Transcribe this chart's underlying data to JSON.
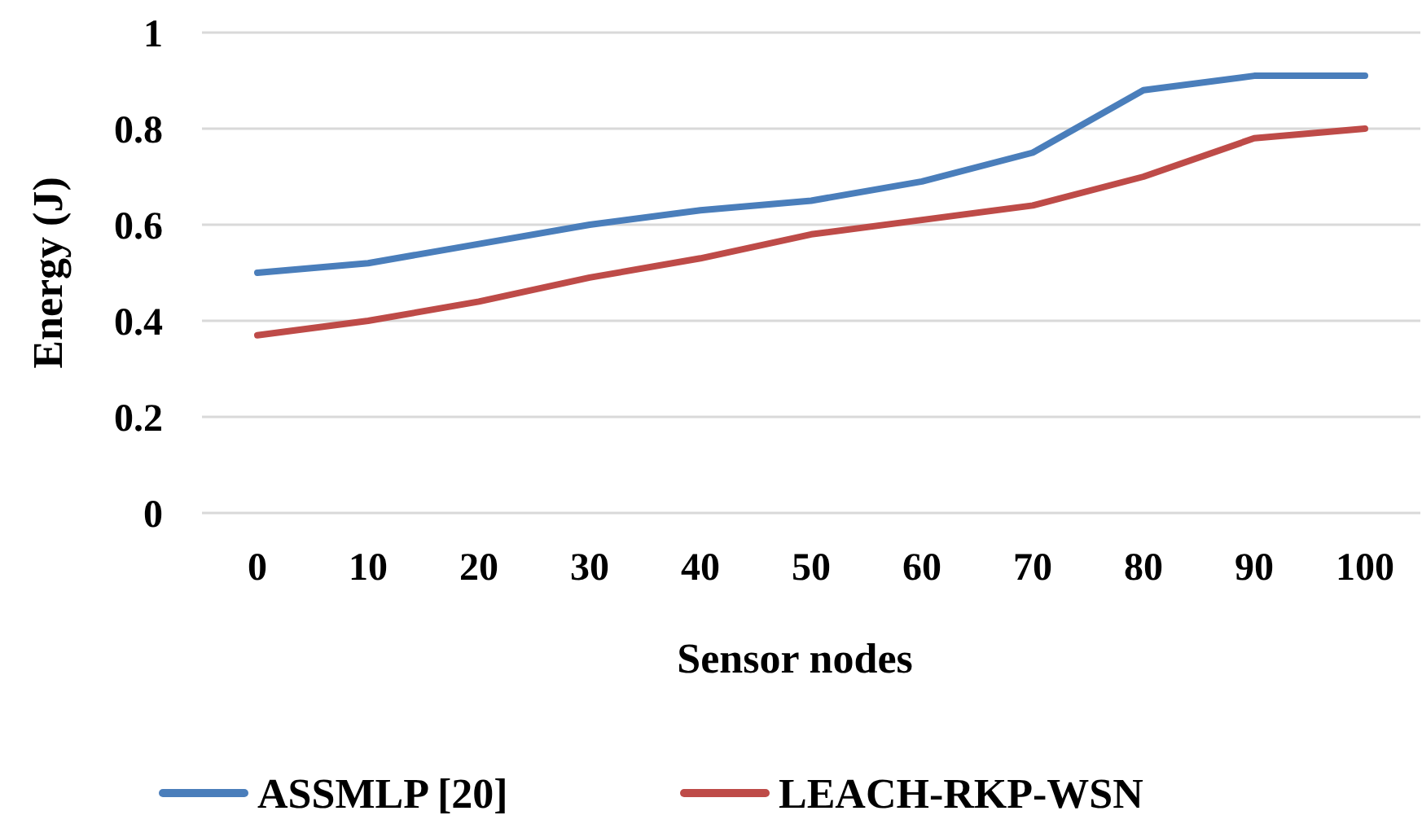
{
  "chart_data": {
    "type": "line",
    "xlabel": "Sensor nodes",
    "ylabel": "Energy (J)",
    "categories": [
      "0",
      "10",
      "20",
      "30",
      "40",
      "50",
      "60",
      "70",
      "80",
      "90",
      "100"
    ],
    "series": [
      {
        "name": "ASSMLP [20]",
        "color": "#4a7ebb",
        "values": [
          0.5,
          0.52,
          0.56,
          0.6,
          0.63,
          0.65,
          0.69,
          0.75,
          0.88,
          0.91,
          0.91
        ]
      },
      {
        "name": "LEACH-RKP-WSN",
        "color": "#be4b48",
        "values": [
          0.37,
          0.4,
          0.44,
          0.49,
          0.53,
          0.58,
          0.61,
          0.64,
          0.7,
          0.78,
          0.8
        ]
      }
    ],
    "ylim": [
      0,
      1
    ],
    "yticks": [
      0,
      0.2,
      0.4,
      0.6,
      0.8,
      1
    ],
    "grid": "y",
    "legend": "bottom",
    "marker": "none",
    "line_style": "solid"
  }
}
